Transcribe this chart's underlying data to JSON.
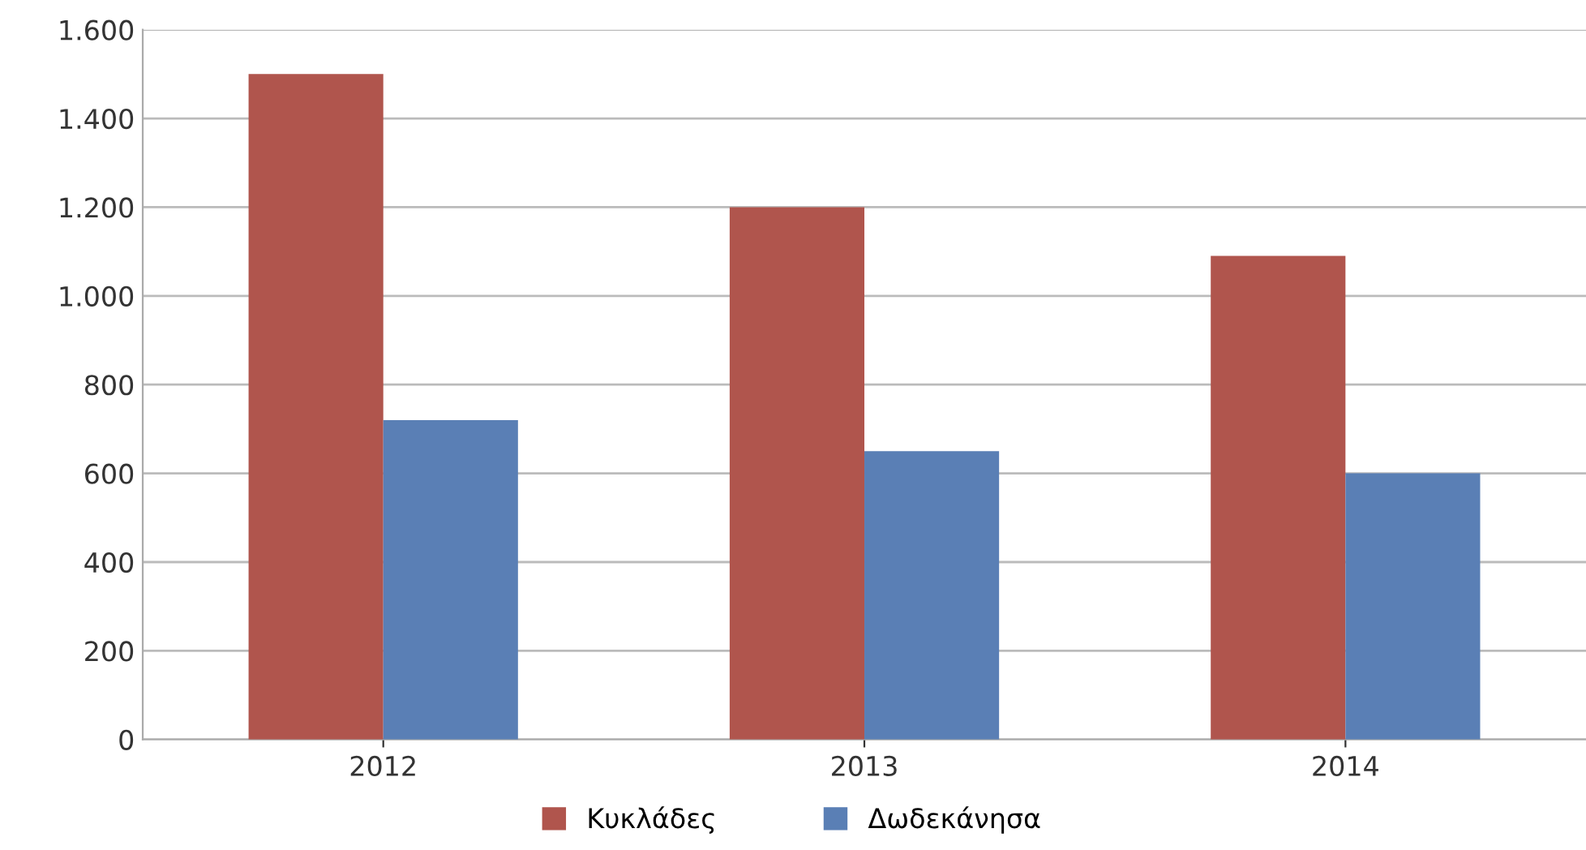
{
  "chart_data": {
    "type": "bar",
    "categories": [
      "2012",
      "2013",
      "2014"
    ],
    "series": [
      {
        "name": "Κυκλάδες",
        "color": "#b0554d",
        "values": [
          1500,
          1200,
          1090
        ]
      },
      {
        "name": "Δωδεκάνησα",
        "color": "#5a7fb5",
        "values": [
          720,
          650,
          600
        ]
      }
    ],
    "ylim": [
      0,
      1600
    ],
    "yticks": [
      0,
      200,
      400,
      600,
      800,
      {
        "value": 1000,
        "label": "1.000"
      },
      {
        "value": 1200,
        "label": "1.200"
      },
      {
        "value": 1400,
        "label": "1.400"
      },
      {
        "value": 1600,
        "label": "1.600"
      }
    ],
    "grid": "y",
    "legend": "bottom"
  }
}
